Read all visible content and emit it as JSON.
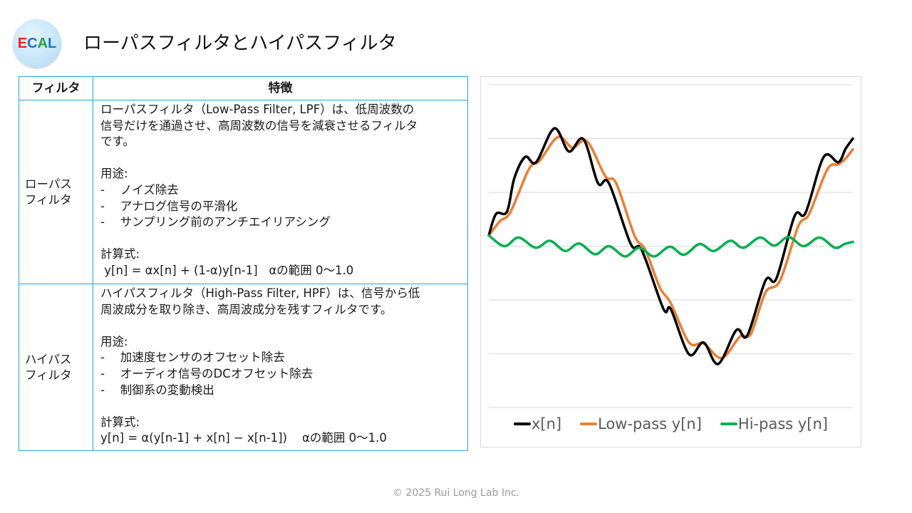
{
  "logo": {
    "text_e": "E",
    "text_c": "C",
    "text_a": "A",
    "text_l": "L"
  },
  "title": "ローパスフィルタとハイパスフィルタ",
  "table": {
    "headers": [
      "フィルタ",
      "特徴"
    ],
    "rows": [
      {
        "name": "ローパス\nフィルタ",
        "description": "ローパスフィルタ（Low-Pass Filter, LPF）は、低周波数の\n信号だけを通過させ、高周波数の信号を減衰させるフィルタ\nです。\n\n用途:\n-　 ノイズ除去\n-　 アナログ信号の平滑化\n-　 サンプリング前のアンチエイリアシング\n\n計算式:\n y[n] = αx[n] + (1-α)y[n-1]   αの範囲 0～1.0"
      },
      {
        "name": "ハイパス\nフィルタ",
        "description": "ハイパスフィルタ（High-Pass Filter, HPF）は、信号から低\n周波成分を取り除き、高周波成分を残すフィルタです。\n\n用途:\n-　 加速度センサのオフセット除去\n-　 オーディオ信号のDCオフセット除去\n-　 制御系の変動検出\n\n計算式:\ny[n] = α(y[n-1] + x[n] − x[n-1])    αの範囲 0～1.0"
      }
    ]
  },
  "chart_data": {
    "type": "line",
    "title": "",
    "xlabel": "",
    "ylabel": "",
    "xlim": [
      0,
      100
    ],
    "ylim": [
      -3,
      3
    ],
    "grid": true,
    "gridlines_y": [
      -3,
      -2,
      -1,
      0,
      1,
      2,
      3
    ],
    "legend_position": "bottom",
    "series": [
      {
        "name": "x[n]",
        "color": "#000000",
        "x": [
          0,
          2,
          5,
          7,
          10,
          13,
          18,
          22,
          26,
          30,
          33,
          39,
          42,
          48,
          50,
          55,
          59,
          63,
          68,
          71,
          76,
          79,
          84,
          87,
          92,
          96,
          98,
          100
        ],
        "y": [
          0.2,
          0.6,
          0.64,
          1.26,
          1.66,
          1.56,
          2.19,
          1.76,
          1.99,
          1.17,
          1.17,
          0.04,
          -0.07,
          -1.17,
          -1.17,
          -2.01,
          -1.79,
          -2.19,
          -1.56,
          -1.66,
          -0.64,
          -0.6,
          0.56,
          0.62,
          1.66,
          1.56,
          1.81,
          2.0
        ]
      },
      {
        "name": "Low-pass y[n]",
        "color": "#ed7d31",
        "x": [
          0,
          3,
          6,
          11,
          14,
          19,
          23,
          27,
          32,
          35,
          40,
          43,
          47,
          50,
          55,
          59,
          64,
          69,
          72,
          76,
          80,
          85,
          88,
          93,
          96,
          98,
          100
        ],
        "y": [
          0.2,
          0.46,
          0.64,
          1.43,
          1.59,
          2.03,
          1.83,
          1.95,
          1.3,
          1.17,
          0.2,
          -0.07,
          -0.77,
          -1.06,
          -1.79,
          -1.81,
          -2.08,
          -1.68,
          -1.63,
          -0.86,
          -0.64,
          0.37,
          0.6,
          1.43,
          1.52,
          1.63,
          1.8
        ]
      },
      {
        "name": "Hi-pass y[n]",
        "color": "#00b050",
        "x": [
          0,
          4.3,
          8.2,
          12.9,
          16.8,
          21,
          24.8,
          29.2,
          33,
          37.4,
          41.3,
          45.4,
          49.7,
          53.6,
          57.9,
          61.8,
          66.3,
          69.9,
          74.5,
          78.4,
          82.3,
          86.5,
          90.8,
          95.1,
          97.7,
          100
        ],
        "y": [
          0.2,
          0,
          0.16,
          -0.03,
          0.1,
          -0.09,
          0.05,
          -0.15,
          0,
          -0.19,
          -0.03,
          -0.19,
          -0.01,
          -0.16,
          0.04,
          -0.09,
          0.1,
          -0.03,
          0.16,
          0.01,
          0.17,
          0,
          0.16,
          -0.03,
          0.04,
          0.08
        ]
      }
    ]
  },
  "footer": "© 2025 Rui Long Lab Inc."
}
